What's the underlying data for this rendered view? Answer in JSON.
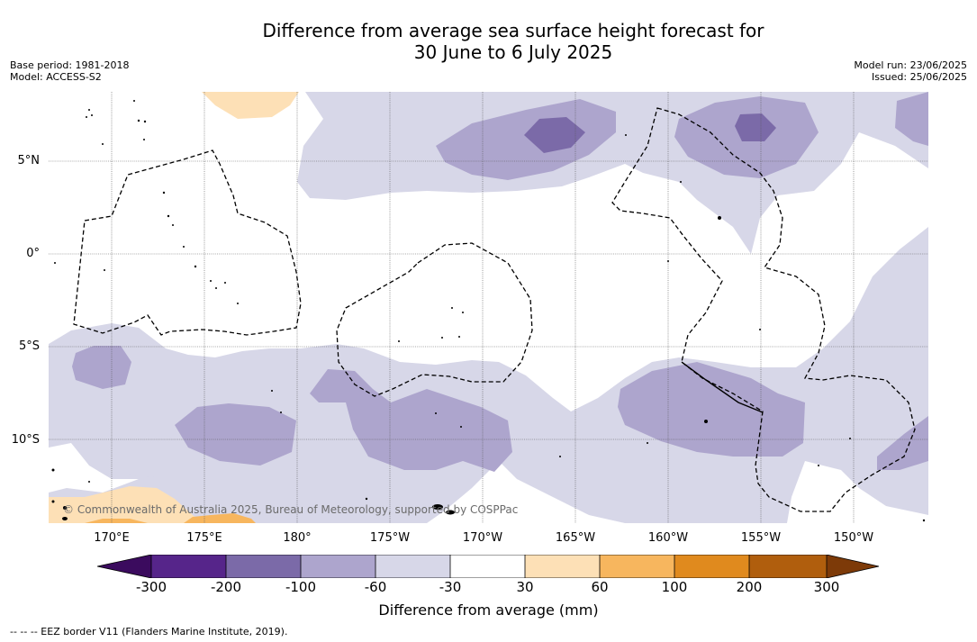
{
  "title_line1": "Difference from average sea surface height forecast for",
  "title_line2": "30 June to 6 July 2025",
  "base_period": "Base period: 1981-2018",
  "model": "Model: ACCESS-S2",
  "model_run": "Model run: 23/06/2025",
  "issued": "Issued: 25/06/2025",
  "lat_labels": [
    "5°N",
    "0°",
    "5°S",
    "10°S"
  ],
  "lon_labels": [
    "170°E",
    "175°E",
    "180°",
    "175°W",
    "170°W",
    "165°W",
    "160°W",
    "155°W",
    "150°W"
  ],
  "copyright": "© Commonwealth of Australia 2025, Bureau of Meteorology, supported by COSPPac",
  "colorbar": {
    "ticks": [
      "-300",
      "-200",
      "-100",
      "-60",
      "-30",
      "30",
      "60",
      "100",
      "200",
      "300"
    ],
    "colors": [
      "#3b0b5e",
      "#56258a",
      "#7b6aa8",
      "#ada5cd",
      "#d7d7e8",
      "#ffffff",
      "#fde0b6",
      "#f7b65e",
      "#e08a1e",
      "#b05e0d",
      "#7d3a08"
    ],
    "label": "Difference from average (mm)"
  },
  "footnote": "-- -- -- EEZ border V11 (Flanders Marine Institute, 2019)."
}
